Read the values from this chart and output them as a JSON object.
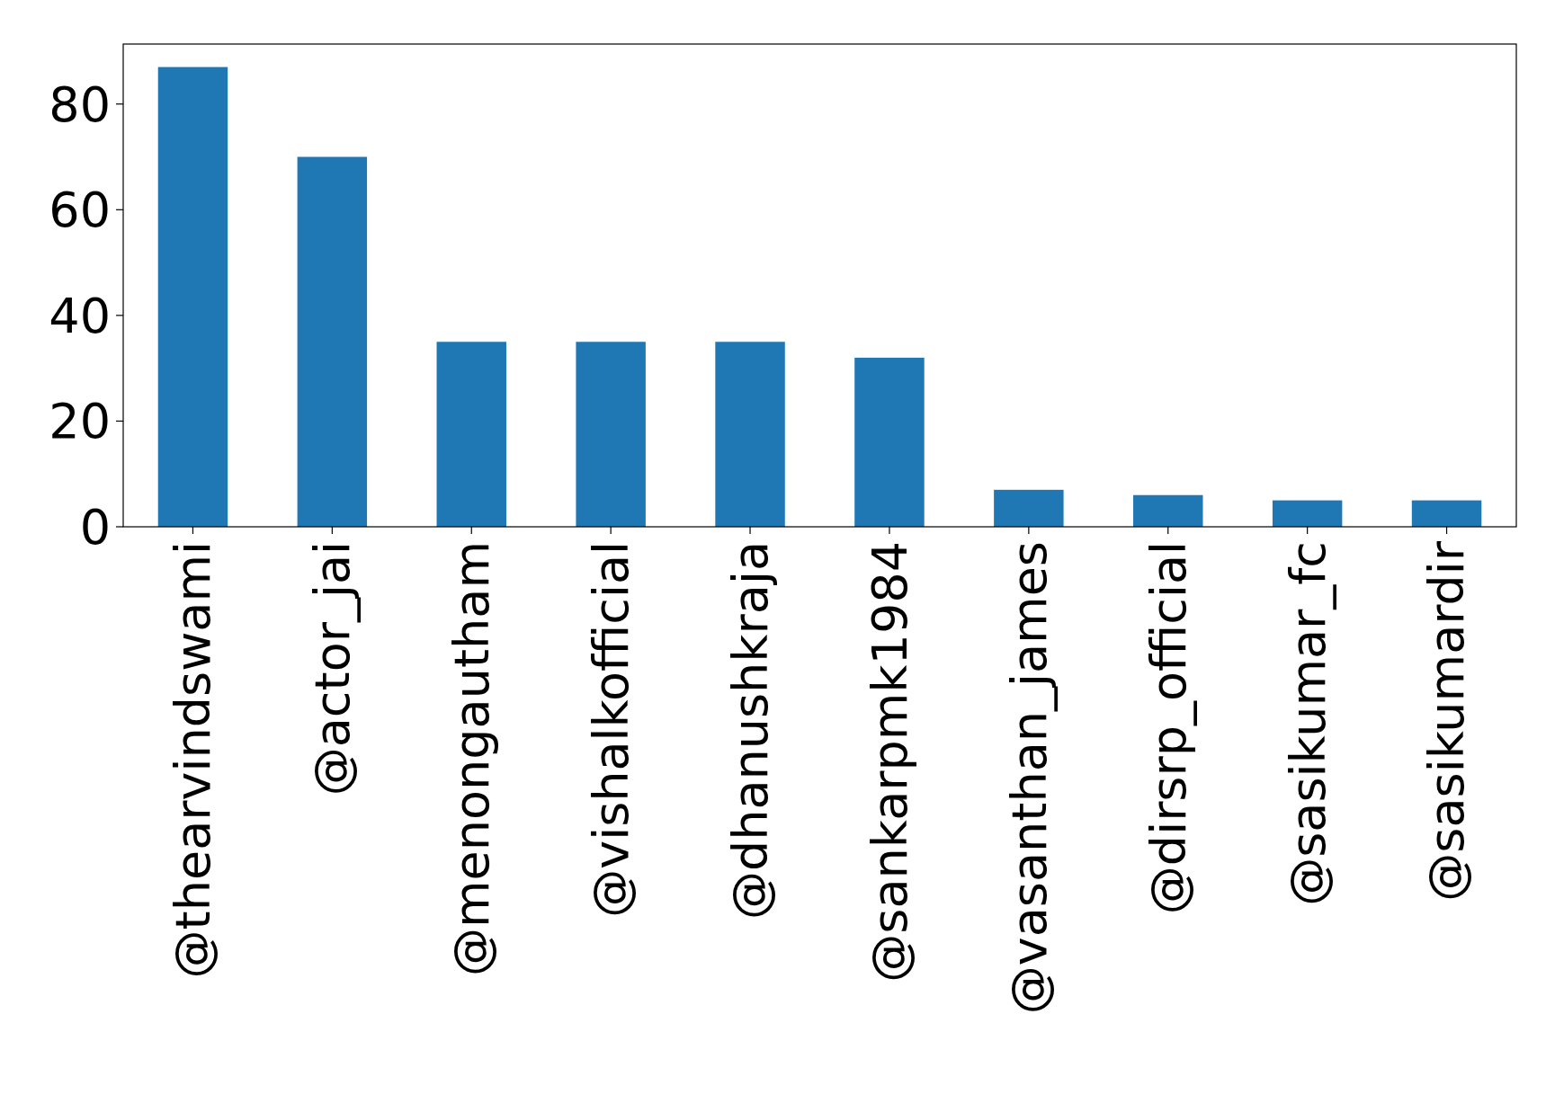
{
  "chart_data": {
    "type": "bar",
    "categories": [
      "@thearvindswami",
      "@actor_jai",
      "@menongautham",
      "@vishalkofficial",
      "@dhanushkraja",
      "@sankarpmk1984",
      "@vasanthan_james",
      "@dirsrp_official",
      "@sasikumar_fc",
      "@sasikumardir"
    ],
    "values": [
      87,
      70,
      35,
      35,
      35,
      32,
      7,
      6,
      5,
      5
    ],
    "color": "#1f77b4",
    "ylim": [
      0,
      91.35
    ],
    "yticks": [
      0,
      20,
      40,
      60,
      80
    ],
    "grid": false
  }
}
